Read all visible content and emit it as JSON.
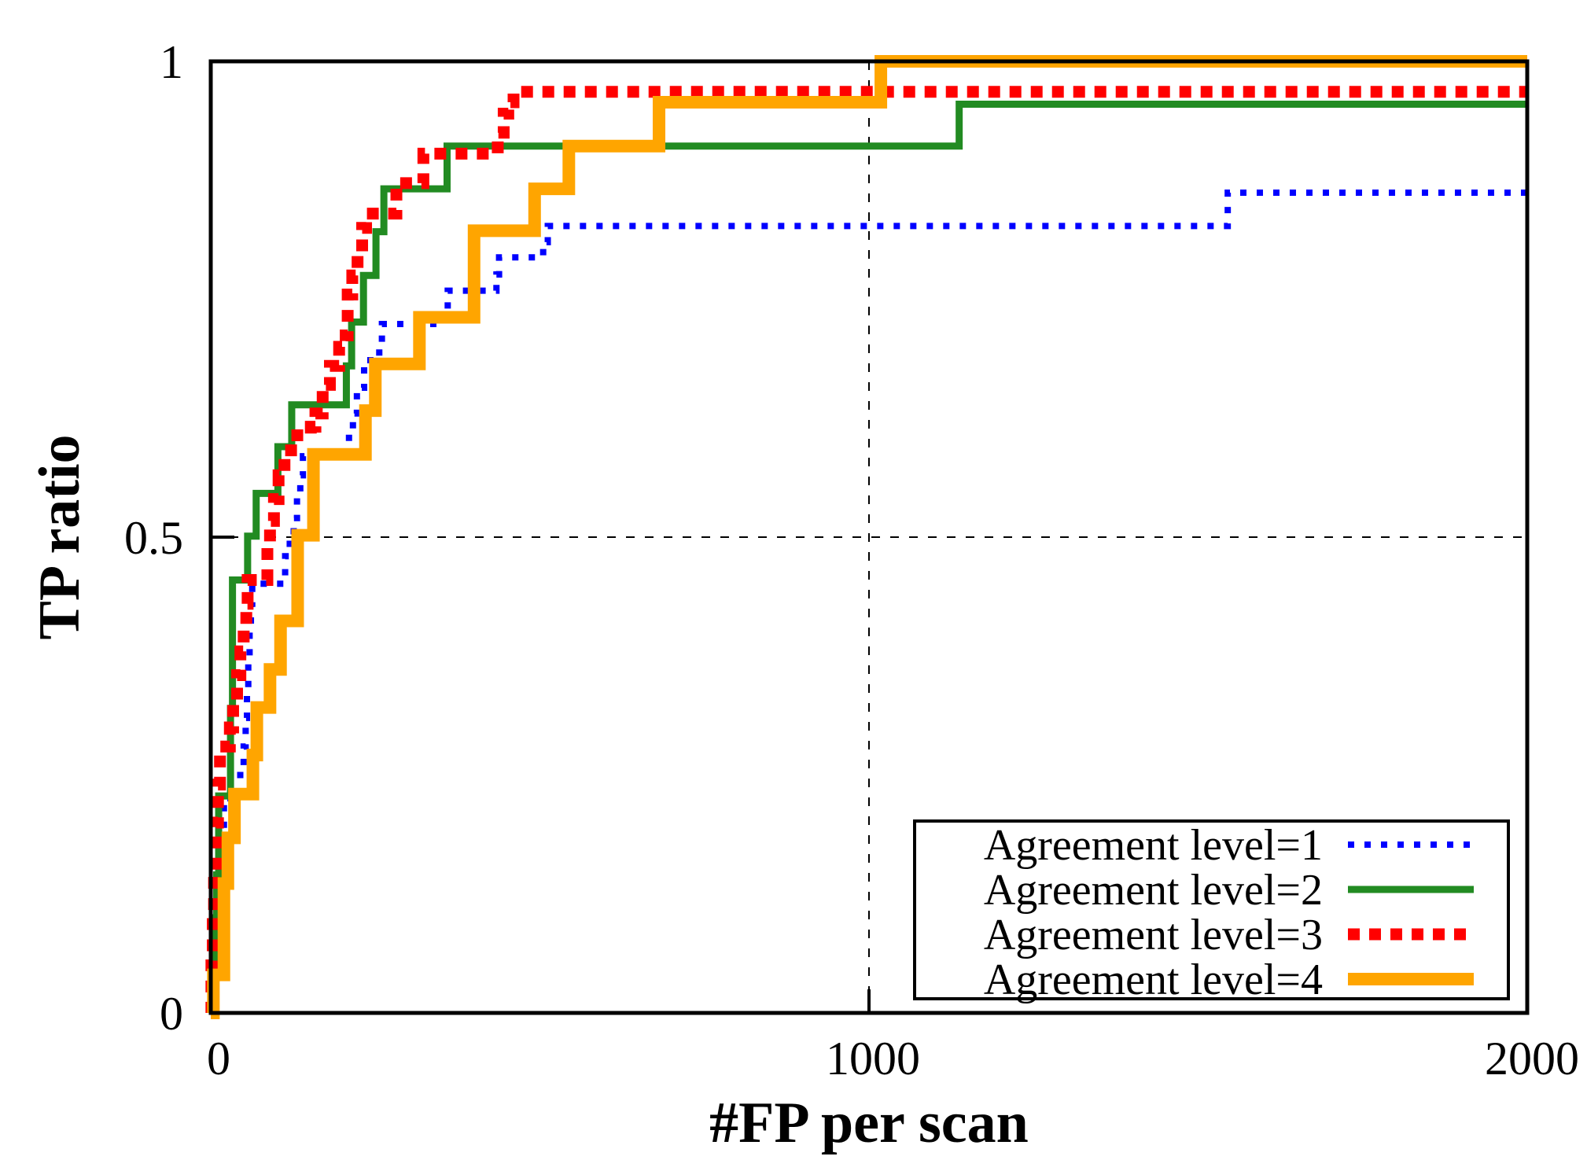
{
  "colors": {
    "level1": "#0000ff",
    "level2": "#228b22",
    "level3": "#ff0000",
    "level4": "#ffa500",
    "axis": "#000000",
    "background": "#ffffff"
  },
  "axes": {
    "x": {
      "label": "#FP per scan",
      "tick_labels": [
        "0",
        "1000",
        "2000"
      ],
      "tick_values": [
        0,
        1000,
        2000
      ]
    },
    "y": {
      "label": "TP ratio",
      "tick_labels": [
        "0",
        "0.5",
        "1"
      ],
      "tick_values": [
        0,
        0.5,
        1
      ]
    }
  },
  "legend": {
    "position": "bottom-right"
  },
  "chart_data": {
    "type": "line",
    "subtype": "step-froc-curves",
    "title": "",
    "xlabel": "#FP per scan",
    "ylabel": "TP ratio",
    "xlim": [
      0,
      2000
    ],
    "ylim": [
      0,
      1
    ],
    "grid": {
      "x_gridlines": [
        1000
      ],
      "y_gridlines": [
        0.5
      ],
      "style": "dashed"
    },
    "legend_position": "bottom-right",
    "series": [
      {
        "name": "Agreement level=1",
        "color": "#0000ff",
        "line": "dotted",
        "width": 8,
        "dash": "8 13",
        "steps": [
          [
            0,
            0
          ],
          [
            2,
            0.04
          ],
          [
            5,
            0.09
          ],
          [
            9,
            0.14
          ],
          [
            14,
            0.18
          ],
          [
            20,
            0.22
          ],
          [
            30,
            0.25
          ],
          [
            50,
            0.28
          ],
          [
            53,
            0.31
          ],
          [
            55,
            0.34
          ],
          [
            57,
            0.37
          ],
          [
            59,
            0.4
          ],
          [
            61,
            0.43
          ],
          [
            63,
            0.451
          ],
          [
            113,
            0.48
          ],
          [
            120,
            0.5
          ],
          [
            126,
            0.52
          ],
          [
            131,
            0.545
          ],
          [
            136,
            0.565
          ],
          [
            140,
            0.585
          ],
          [
            210,
            0.61
          ],
          [
            216,
            0.63
          ],
          [
            222,
            0.657
          ],
          [
            233,
            0.686
          ],
          [
            256,
            0.705
          ],
          [
            260,
            0.724
          ],
          [
            356,
            0.74
          ],
          [
            360,
            0.759
          ],
          [
            434,
            0.776
          ],
          [
            438,
            0.794
          ],
          [
            505,
            0.81
          ],
          [
            512,
            0.827
          ],
          [
            1545,
            0.862
          ]
        ]
      },
      {
        "name": "Agreement level=2",
        "color": "#228b22",
        "line": "solid",
        "width": 9,
        "dash": "",
        "steps": [
          [
            0,
            0
          ],
          [
            3,
            0.05
          ],
          [
            6,
            0.1
          ],
          [
            9,
            0.145
          ],
          [
            12,
            0.228
          ],
          [
            30,
            0.32
          ],
          [
            33,
            0.455
          ],
          [
            56,
            0.501
          ],
          [
            69,
            0.546
          ],
          [
            102,
            0.595
          ],
          [
            123,
            0.639
          ],
          [
            206,
            0.68
          ],
          [
            214,
            0.726
          ],
          [
            232,
            0.775
          ],
          [
            251,
            0.821
          ],
          [
            263,
            0.866
          ],
          [
            359,
            0.911
          ],
          [
            1137,
            0.955
          ]
        ]
      },
      {
        "name": "Agreement level=3",
        "color": "#ff0000",
        "line": "dotted",
        "width": 15,
        "dash": "15 12",
        "steps": [
          [
            0,
            0
          ],
          [
            1,
            0.05
          ],
          [
            3,
            0.1
          ],
          [
            5,
            0.15
          ],
          [
            8,
            0.2
          ],
          [
            11,
            0.24
          ],
          [
            14,
            0.28
          ],
          [
            29,
            0.3
          ],
          [
            34,
            0.325
          ],
          [
            40,
            0.355
          ],
          [
            45,
            0.38
          ],
          [
            50,
            0.405
          ],
          [
            54,
            0.43
          ],
          [
            56,
            0.455
          ],
          [
            86,
            0.49
          ],
          [
            90,
            0.517
          ],
          [
            96,
            0.54
          ],
          [
            103,
            0.565
          ],
          [
            112,
            0.585
          ],
          [
            122,
            0.607
          ],
          [
            152,
            0.616
          ],
          [
            159,
            0.63
          ],
          [
            170,
            0.66
          ],
          [
            181,
            0.68
          ],
          [
            195,
            0.7
          ],
          [
            205,
            0.712
          ],
          [
            208,
            0.755
          ],
          [
            215,
            0.775
          ],
          [
            223,
            0.8
          ],
          [
            230,
            0.825
          ],
          [
            236,
            0.84
          ],
          [
            282,
            0.872
          ],
          [
            323,
            0.903
          ],
          [
            436,
            0.925
          ],
          [
            445,
            0.945
          ],
          [
            452,
            0.957
          ],
          [
            460,
            0.968
          ]
        ]
      },
      {
        "name": "Agreement level=4",
        "color": "#ffa500",
        "line": "solid",
        "width": 16,
        "dash": "",
        "steps": [
          [
            0,
            0
          ],
          [
            4,
            0.04
          ],
          [
            20,
            0.136
          ],
          [
            26,
            0.184
          ],
          [
            36,
            0.23
          ],
          [
            64,
            0.271
          ],
          [
            70,
            0.321
          ],
          [
            90,
            0.361
          ],
          [
            106,
            0.412
          ],
          [
            132,
            0.502
          ],
          [
            156,
            0.587
          ],
          [
            235,
            0.633
          ],
          [
            250,
            0.682
          ],
          [
            317,
            0.731
          ],
          [
            400,
            0.822
          ],
          [
            492,
            0.866
          ],
          [
            544,
            0.911
          ],
          [
            681,
            0.957
          ],
          [
            1018,
            1.0
          ]
        ]
      }
    ]
  }
}
